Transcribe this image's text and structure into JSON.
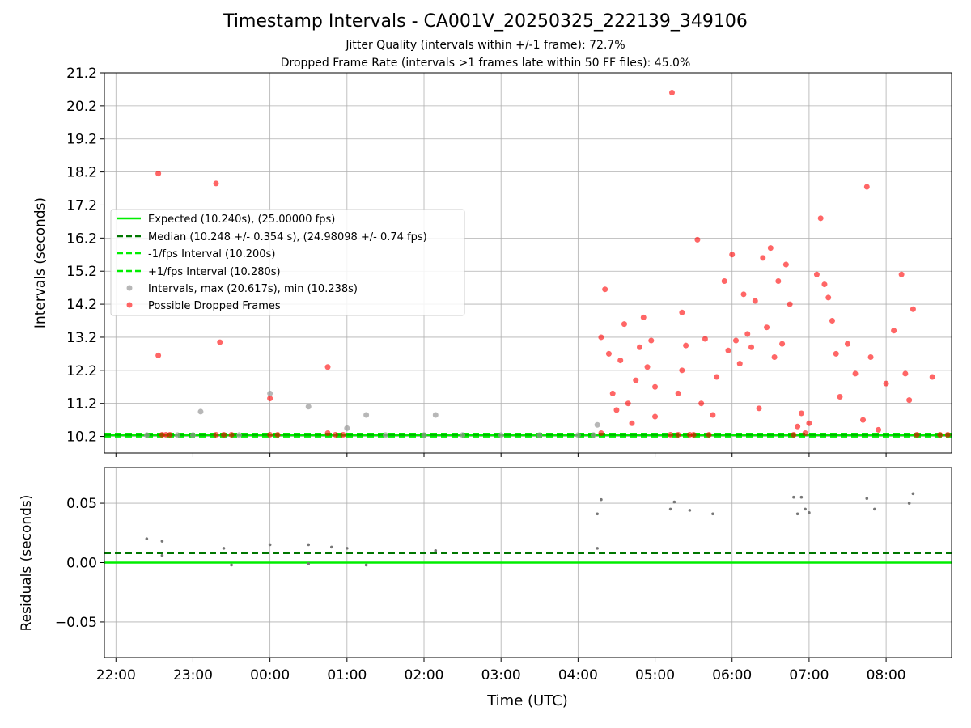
{
  "chart_data": [
    {
      "type": "scatter",
      "title": "Timestamp Intervals - CA001V_20250325_222139_349106",
      "subtitle_lines": [
        "Jitter Quality (intervals within +/-1 frame): 72.7%",
        "Dropped Frame Rate (intervals >1 frames late within 50 FF files): 45.0%"
      ],
      "xlabel": "",
      "ylabel": "Intervals (seconds)",
      "ylim": [
        9.7,
        21.2
      ],
      "xlim_hours": [
        21.85,
        32.85
      ],
      "y_ticks": [
        "10.2",
        "11.2",
        "12.2",
        "13.2",
        "14.2",
        "15.2",
        "16.2",
        "17.2",
        "18.2",
        "19.2",
        "20.2",
        "21.2"
      ],
      "x_ticks": [
        "22:00",
        "23:00",
        "00:00",
        "01:00",
        "02:00",
        "03:00",
        "04:00",
        "05:00",
        "06:00",
        "07:00",
        "08:00"
      ],
      "grid": true,
      "legend_position": "center-left",
      "legend": [
        "Expected (10.240s), (25.00000 fps)",
        "Median (10.248 +/- 0.354 s), (24.98098 +/- 0.74 fps)",
        "-1/fps Interval (10.200s)",
        "+1/fps Interval (10.280s)",
        "Intervals, max (20.617s), min (10.238s)",
        "Possible Dropped Frames"
      ],
      "reference_lines": [
        {
          "name": "Expected",
          "y": 10.24,
          "color": "#00ee00",
          "style": "solid"
        },
        {
          "name": "Median",
          "y": 10.248,
          "color": "#007700",
          "style": "dashed"
        },
        {
          "name": "-1/fps",
          "y": 10.2,
          "color": "#00ee00",
          "style": "dashed"
        },
        {
          "name": "+1/fps",
          "y": 10.28,
          "color": "#00ee00",
          "style": "dashed"
        }
      ],
      "series": [
        {
          "name": "Intervals",
          "color": "#999999",
          "points": [
            [
              22.4,
              10.24
            ],
            [
              22.8,
              10.24
            ],
            [
              23.0,
              10.24
            ],
            [
              23.1,
              10.95
            ],
            [
              23.6,
              10.24
            ],
            [
              24.0,
              11.5
            ],
            [
              24.5,
              11.1
            ],
            [
              25.0,
              10.45
            ],
            [
              25.25,
              10.85
            ],
            [
              25.5,
              10.24
            ],
            [
              26.0,
              10.24
            ],
            [
              26.15,
              10.85
            ],
            [
              26.5,
              10.24
            ],
            [
              27.0,
              10.24
            ],
            [
              27.5,
              10.24
            ],
            [
              28.0,
              10.24
            ],
            [
              28.2,
              10.24
            ],
            [
              28.25,
              10.55
            ]
          ]
        },
        {
          "name": "Possible Dropped Frames",
          "color": "#ff0000",
          "points": [
            [
              22.55,
              18.15
            ],
            [
              22.55,
              12.65
            ],
            [
              22.6,
              10.25
            ],
            [
              22.65,
              10.25
            ],
            [
              22.7,
              10.25
            ],
            [
              23.3,
              17.85
            ],
            [
              23.35,
              13.05
            ],
            [
              23.3,
              10.25
            ],
            [
              23.4,
              10.25
            ],
            [
              23.5,
              10.25
            ],
            [
              24.0,
              11.35
            ],
            [
              24.0,
              10.25
            ],
            [
              24.1,
              10.25
            ],
            [
              24.75,
              12.3
            ],
            [
              24.75,
              10.3
            ],
            [
              24.85,
              10.25
            ],
            [
              24.95,
              10.25
            ],
            [
              28.3,
              10.3
            ],
            [
              28.35,
              14.65
            ],
            [
              28.3,
              13.2
            ],
            [
              28.4,
              12.7
            ],
            [
              28.45,
              11.5
            ],
            [
              28.5,
              11.0
            ],
            [
              28.55,
              12.5
            ],
            [
              28.6,
              13.6
            ],
            [
              28.65,
              11.2
            ],
            [
              28.7,
              10.6
            ],
            [
              28.75,
              11.9
            ],
            [
              28.8,
              12.9
            ],
            [
              28.85,
              13.8
            ],
            [
              28.9,
              12.3
            ],
            [
              28.95,
              13.1
            ],
            [
              29.0,
              11.7
            ],
            [
              29.0,
              10.8
            ],
            [
              29.2,
              10.25
            ],
            [
              29.3,
              10.25
            ],
            [
              29.35,
              13.95
            ],
            [
              29.4,
              12.95
            ],
            [
              29.45,
              10.25
            ],
            [
              29.5,
              10.25
            ],
            [
              29.55,
              16.15
            ],
            [
              29.6,
              11.2
            ],
            [
              29.65,
              13.15
            ],
            [
              29.7,
              10.25
            ],
            [
              29.75,
              10.85
            ],
            [
              29.8,
              12.0
            ],
            [
              29.22,
              20.6
            ],
            [
              29.3,
              11.5
            ],
            [
              29.35,
              12.2
            ],
            [
              29.9,
              14.9
            ],
            [
              29.95,
              12.8
            ],
            [
              30.0,
              15.7
            ],
            [
              30.05,
              13.1
            ],
            [
              30.1,
              12.4
            ],
            [
              30.15,
              14.5
            ],
            [
              30.2,
              13.3
            ],
            [
              30.25,
              12.9
            ],
            [
              30.3,
              14.3
            ],
            [
              30.35,
              11.05
            ],
            [
              30.4,
              15.6
            ],
            [
              30.45,
              13.5
            ],
            [
              30.5,
              15.9
            ],
            [
              30.55,
              12.6
            ],
            [
              30.6,
              14.9
            ],
            [
              30.65,
              13.0
            ],
            [
              30.7,
              15.4
            ],
            [
              30.75,
              14.2
            ],
            [
              30.8,
              10.25
            ],
            [
              30.85,
              10.5
            ],
            [
              30.9,
              10.9
            ],
            [
              30.95,
              10.3
            ],
            [
              31.0,
              10.6
            ],
            [
              31.15,
              16.8
            ],
            [
              31.1,
              15.1
            ],
            [
              31.2,
              14.8
            ],
            [
              31.25,
              14.4
            ],
            [
              31.3,
              13.7
            ],
            [
              31.35,
              12.7
            ],
            [
              31.4,
              11.4
            ],
            [
              31.5,
              13.0
            ],
            [
              31.6,
              12.1
            ],
            [
              31.7,
              10.7
            ],
            [
              31.75,
              17.75
            ],
            [
              31.8,
              12.6
            ],
            [
              31.9,
              10.4
            ],
            [
              32.0,
              11.8
            ],
            [
              32.1,
              13.4
            ],
            [
              32.2,
              15.1
            ],
            [
              32.25,
              12.1
            ],
            [
              32.3,
              11.3
            ],
            [
              32.35,
              14.05
            ],
            [
              32.4,
              10.25
            ],
            [
              32.6,
              12.0
            ],
            [
              32.7,
              10.25
            ],
            [
              32.8,
              10.25
            ]
          ]
        }
      ]
    },
    {
      "type": "scatter",
      "xlabel": "Time (UTC)",
      "ylabel": "Residuals (seconds)",
      "ylim": [
        -0.08,
        0.08
      ],
      "y_ticks": [
        "−0.05",
        "0.00",
        "0.05"
      ],
      "x_ticks": [
        "22:00",
        "23:00",
        "00:00",
        "01:00",
        "02:00",
        "03:00",
        "04:00",
        "05:00",
        "06:00",
        "07:00",
        "08:00"
      ],
      "grid": true,
      "reference_lines": [
        {
          "name": "Median",
          "y": 0.008,
          "color": "#007700",
          "style": "dashed"
        },
        {
          "name": "Expected",
          "y": 0.0,
          "color": "#00ee00",
          "style": "solid"
        }
      ],
      "series": [
        {
          "name": "Residuals",
          "color": "#777777",
          "points": [
            [
              22.4,
              0.02
            ],
            [
              22.6,
              0.018
            ],
            [
              22.6,
              0.006
            ],
            [
              23.4,
              0.012
            ],
            [
              23.5,
              -0.002
            ],
            [
              24.0,
              0.015
            ],
            [
              24.5,
              0.015
            ],
            [
              24.5,
              -0.001
            ],
            [
              24.8,
              0.013
            ],
            [
              25.0,
              0.012
            ],
            [
              25.25,
              -0.002
            ],
            [
              26.15,
              0.01
            ],
            [
              28.25,
              0.041
            ],
            [
              28.3,
              0.053
            ],
            [
              28.25,
              0.012
            ],
            [
              29.2,
              0.045
            ],
            [
              29.25,
              0.051
            ],
            [
              29.45,
              0.044
            ],
            [
              29.75,
              0.041
            ],
            [
              30.8,
              0.055
            ],
            [
              30.85,
              0.041
            ],
            [
              30.9,
              0.055
            ],
            [
              30.95,
              0.045
            ],
            [
              31.0,
              0.042
            ],
            [
              31.75,
              0.054
            ],
            [
              31.85,
              0.045
            ],
            [
              32.3,
              0.05
            ],
            [
              32.35,
              0.058
            ]
          ]
        }
      ]
    }
  ]
}
